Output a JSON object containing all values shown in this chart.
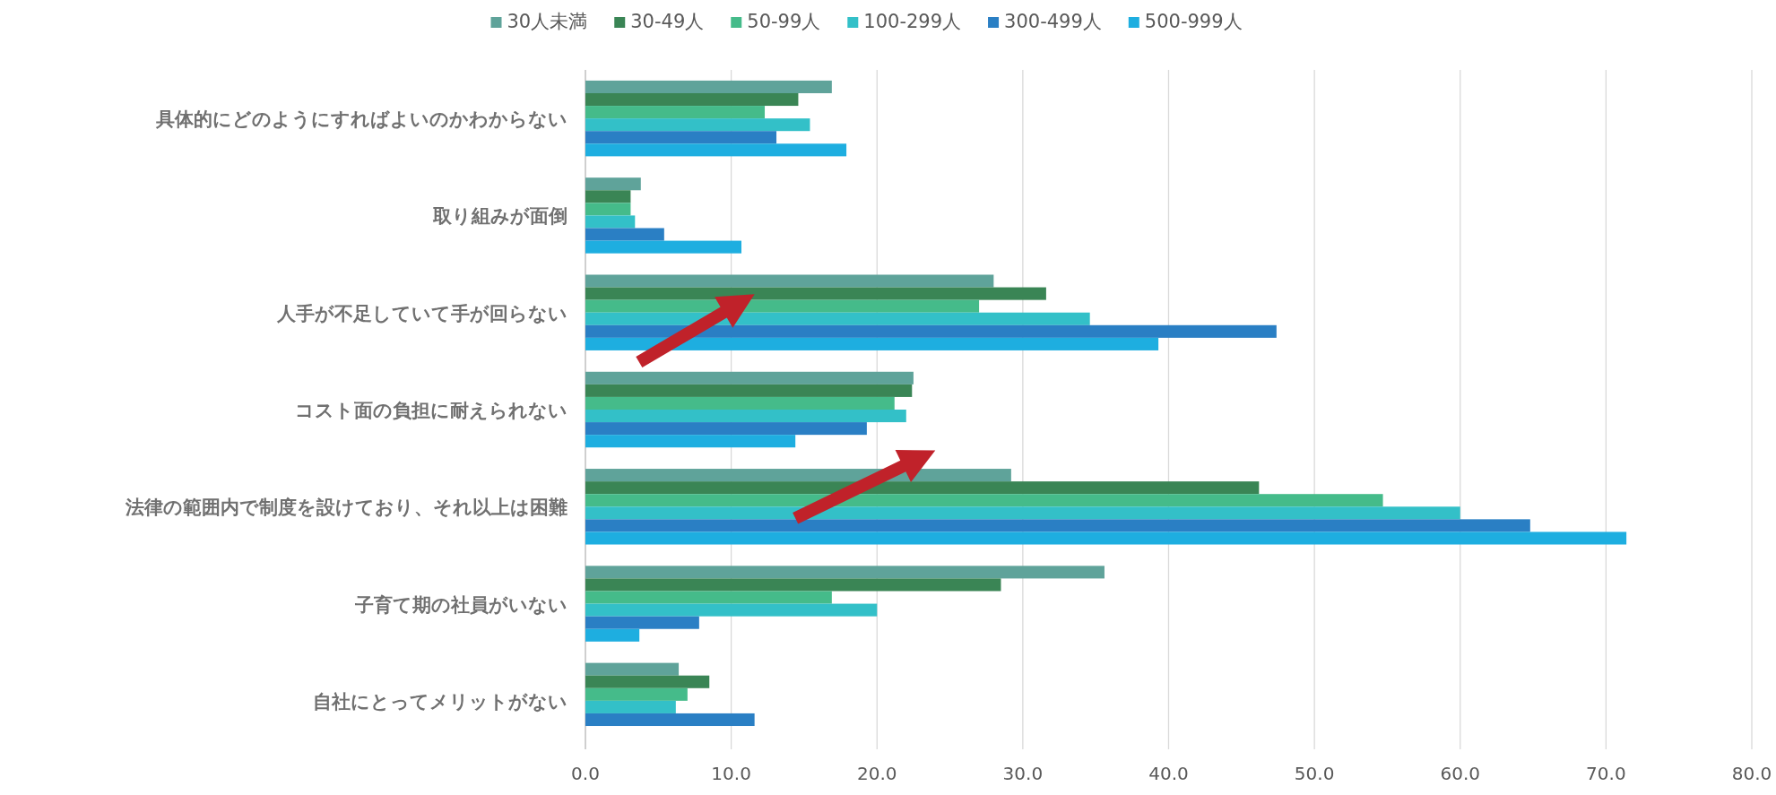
{
  "chart_data": {
    "type": "bar",
    "orientation": "horizontal",
    "categories": [
      "具体的にどのようにすればよいのかわからない",
      "取り組みが面倒",
      "人手が不足していて手が回らない",
      "コスト面の負担に耐えられない",
      "法律の範囲内で制度を設けており、それ以上は困難",
      "子育て期の社員がいない",
      "自社にとってメリットがない"
    ],
    "series": [
      {
        "name": "30人未満",
        "color": "#5fa39a",
        "values": [
          16.9,
          3.8,
          28.0,
          22.5,
          29.2,
          35.6,
          6.4
        ]
      },
      {
        "name": "30-49人",
        "color": "#3a8555",
        "values": [
          14.6,
          3.1,
          31.6,
          22.4,
          46.2,
          28.5,
          8.5
        ]
      },
      {
        "name": "50-99人",
        "color": "#45bb8a",
        "values": [
          12.3,
          3.1,
          27.0,
          21.2,
          54.7,
          16.9,
          7.0
        ]
      },
      {
        "name": "100-299人",
        "color": "#33c0c8",
        "values": [
          15.4,
          3.4,
          34.6,
          22.0,
          60.0,
          20.0,
          6.2
        ]
      },
      {
        "name": "300-499人",
        "color": "#2a7fc4",
        "values": [
          13.1,
          5.4,
          47.4,
          19.3,
          64.8,
          7.8,
          11.6
        ]
      },
      {
        "name": "500-999人",
        "color": "#1eaee0",
        "values": [
          17.9,
          10.7,
          39.3,
          14.4,
          71.4,
          3.7,
          null
        ]
      }
    ],
    "xlim": [
      0,
      80
    ],
    "xticks": [
      {
        "value": 0,
        "label": "0.0"
      },
      {
        "value": 10,
        "label": "10.0"
      },
      {
        "value": 20,
        "label": "20.0"
      },
      {
        "value": 30,
        "label": "30.0"
      },
      {
        "value": 40,
        "label": "40.0"
      },
      {
        "value": 50,
        "label": "50.0"
      },
      {
        "value": 60,
        "label": "60.0"
      },
      {
        "value": 70,
        "label": "70.0"
      },
      {
        "value": 80,
        "label": "80.0"
      }
    ],
    "grid": "x",
    "legend": "top"
  }
}
